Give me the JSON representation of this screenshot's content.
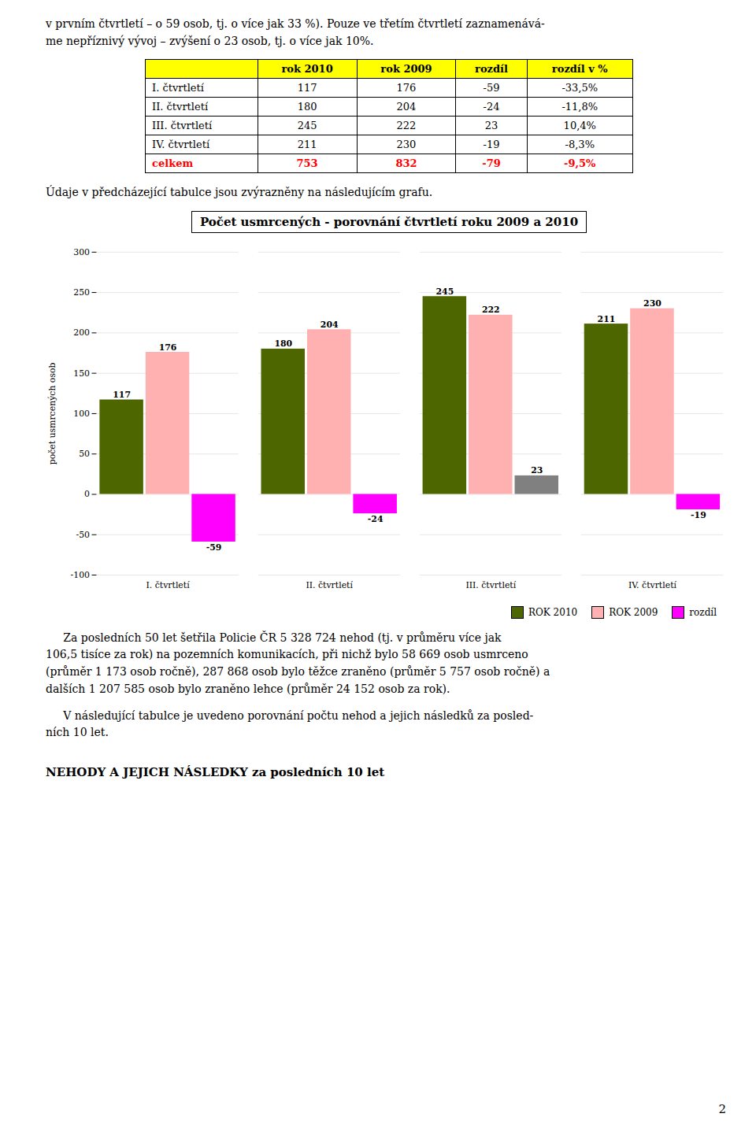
{
  "text_intro": "v prvním čtvrtletí – o 59 osob, tj. o více jak 33 %). Pouze ve třetím čtvrtletí zaznamenává-\nme nepříznivý vývoj – zvýšení o 23 osob, tj. o více jak 10%.",
  "table": {
    "header": [
      null,
      "rok 2010",
      "rok 2009",
      "rozdíl",
      "rozdíl v %"
    ],
    "rows": [
      [
        "I. čtvrtletí",
        "117",
        "176",
        "-59",
        "-33,5%"
      ],
      [
        "II. čtvrtletí",
        "180",
        "204",
        "-24",
        "-11,8%"
      ],
      [
        "III. čtvrtletí",
        "245",
        "222",
        "23",
        "10,4%"
      ],
      [
        "IV. čtvrtletí",
        "211",
        "230",
        "-19",
        "-8,3%"
      ],
      [
        "celkem",
        "753",
        "832",
        "-79",
        "-9,5%"
      ]
    ]
  },
  "text_middle": "Údaje v předcházející tabulce jsou zvýrazněny na následujícím grafu.",
  "chart_data": {
    "type": "bar",
    "title": "Počet usmrcených - porovnání čtvrtletí roku 2009 a 2010",
    "categories": [
      "I. čtvrtletí",
      "II. čtvrtletí",
      "III. čtvrtletí",
      "IV. čtvrtletí"
    ],
    "series": [
      {
        "name": "ROK 2010",
        "color": "#4d6600",
        "values": [
          117,
          180,
          245,
          211
        ]
      },
      {
        "name": "ROK 2009",
        "color": "#ffb0b0",
        "values": [
          176,
          204,
          222,
          230
        ]
      },
      {
        "name": "rozdíl",
        "color": "#ff00ff",
        "colors": [
          "#ff00ff",
          "#ff00ff",
          "#808080",
          "#ff00ff"
        ],
        "values": [
          -59,
          -24,
          23,
          -19
        ]
      }
    ],
    "ylabel": "počet usmrcených osob",
    "ylim": [
      -100,
      300
    ],
    "yticks": [
      -100,
      -50,
      0,
      50,
      100,
      150,
      200,
      250,
      300
    ],
    "grid": true,
    "legend": "lower right",
    "data_labels": true
  },
  "text_paragraph1": "     Za posledních 50 let šetřila Policie ČR 5 328 724 nehod (tj. v průměru více jak\n106,5 tisíce za rok) na pozemních komunikacích, při nichž bylo 58 669 osob usmrceno\n(průměr 1 173 osob ročně), 287 868 osob bylo těžce zraněno (průměr 5 757 osob ročně) a\ndalších 1 207 585 osob bylo zraněno lehce (průměr 24 152 osob za rok).",
  "text_paragraph2": "     V následující tabulce je uvedeno porovnání počtu nehod a jejich následků za posled-\nních 10 let.",
  "text_bold": "NEHODY A JEJICH NÁSLEDKY za posledních 10 let",
  "page_number": "2"
}
